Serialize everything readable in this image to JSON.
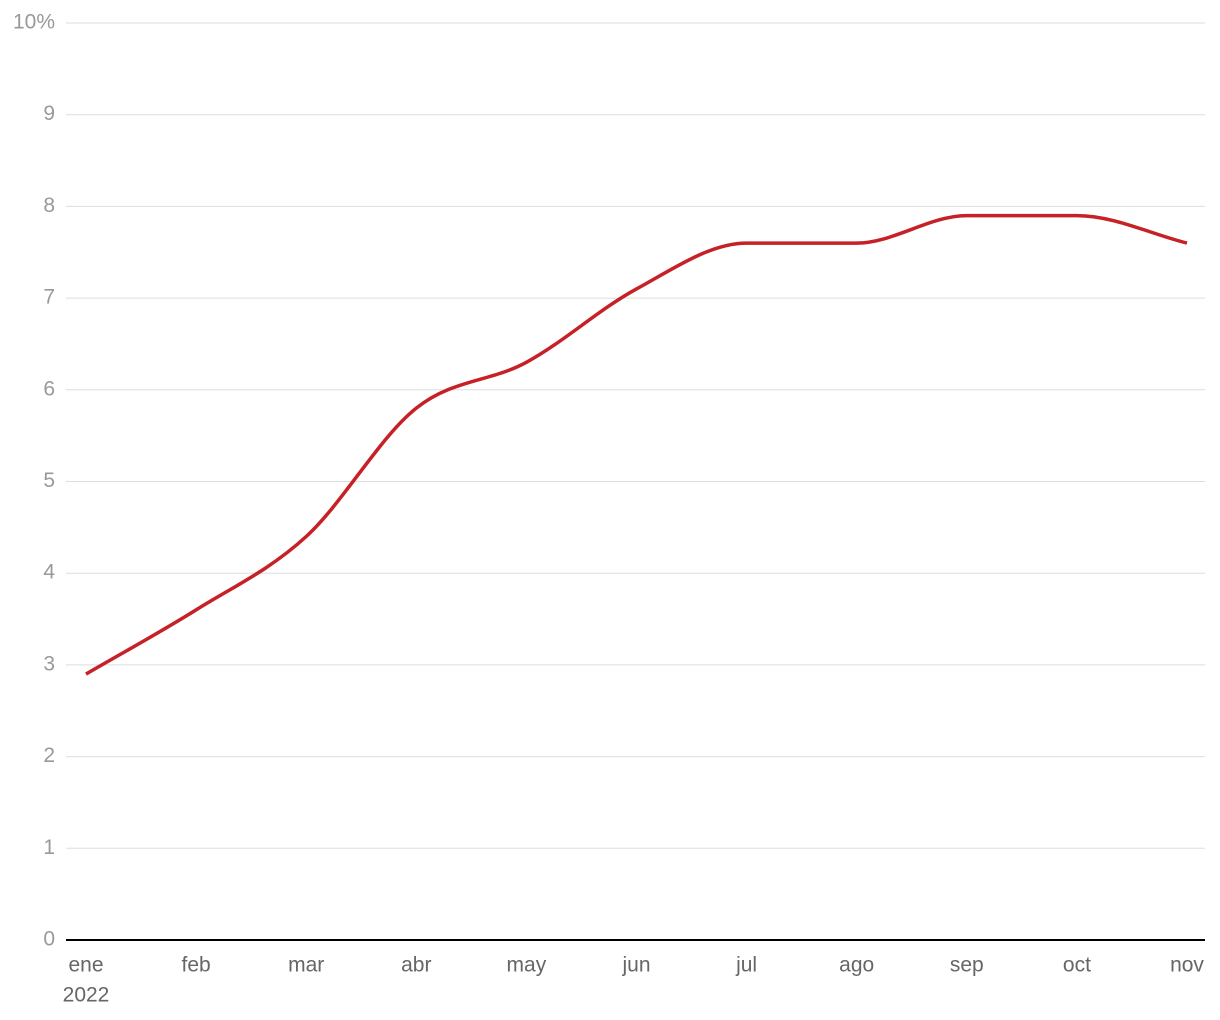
{
  "chart_data": {
    "type": "line",
    "categories": [
      "ene",
      "feb",
      "mar",
      "abr",
      "may",
      "jun",
      "jul",
      "ago",
      "sep",
      "oct",
      "nov"
    ],
    "year_label": "2022",
    "series": [
      {
        "color": "#c62127",
        "values": [
          2.9,
          3.6,
          4.4,
          5.8,
          6.3,
          7.1,
          7.6,
          7.6,
          7.9,
          7.9,
          7.6
        ]
      }
    ],
    "ylim": [
      0,
      10
    ],
    "yticks": [
      0,
      1,
      2,
      3,
      4,
      5,
      6,
      7,
      8,
      9,
      {
        "value": 10,
        "label": "10%"
      }
    ],
    "grid": true
  }
}
